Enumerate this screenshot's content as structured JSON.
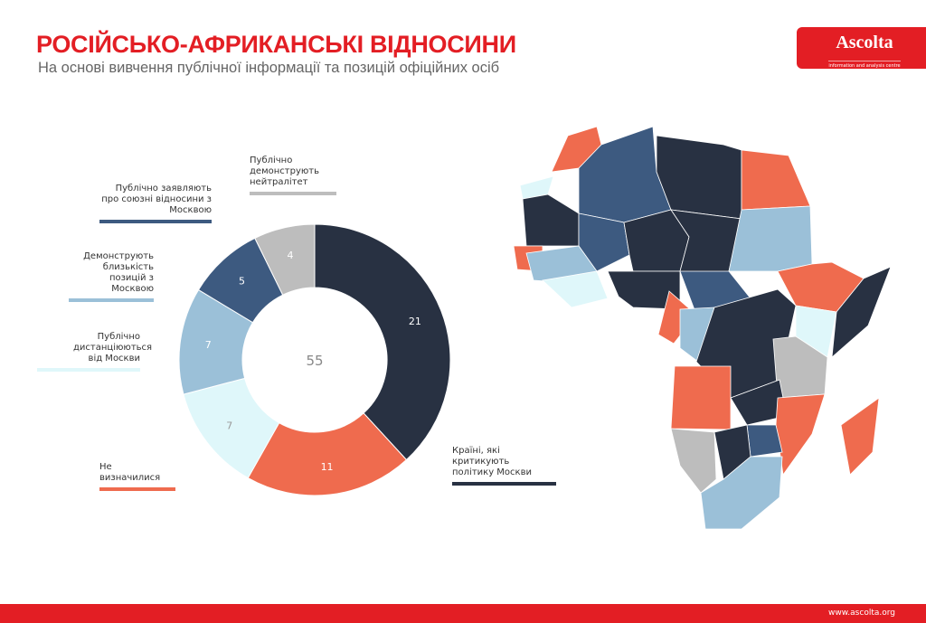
{
  "header": {
    "title": "РОСІЙСЬКО-АФРИКАНСЬКІ ВІДНОСИНИ",
    "subtitle": "На основі вивчення публічної інформації та позицій офіційних осіб"
  },
  "logo": {
    "name": "Ascolta",
    "tagline": "information and analysis centre"
  },
  "footer": {
    "url": "www.ascolta.org"
  },
  "chart_data": {
    "type": "pie",
    "donut": true,
    "total": 55,
    "slices": [
      {
        "label": "Країні, які критикують політику Москви",
        "value": 21,
        "color": "#283142"
      },
      {
        "label": "Не визначилися",
        "value": 11,
        "color": "#ef6b4e"
      },
      {
        "label": "Публічно дистанціюються від Москви",
        "value": 7,
        "color": "#dff7fa"
      },
      {
        "label": "Демонструють близькість позицій з Москвою",
        "value": 7,
        "color": "#9bc0d8"
      },
      {
        "label": "Публічно заявляють про союзні відносини з Москвою",
        "value": 5,
        "color": "#3d5a80"
      },
      {
        "label": "Публічно демонструють нейтралітет",
        "value": 4,
        "color": "#bdbdbd"
      }
    ]
  }
}
